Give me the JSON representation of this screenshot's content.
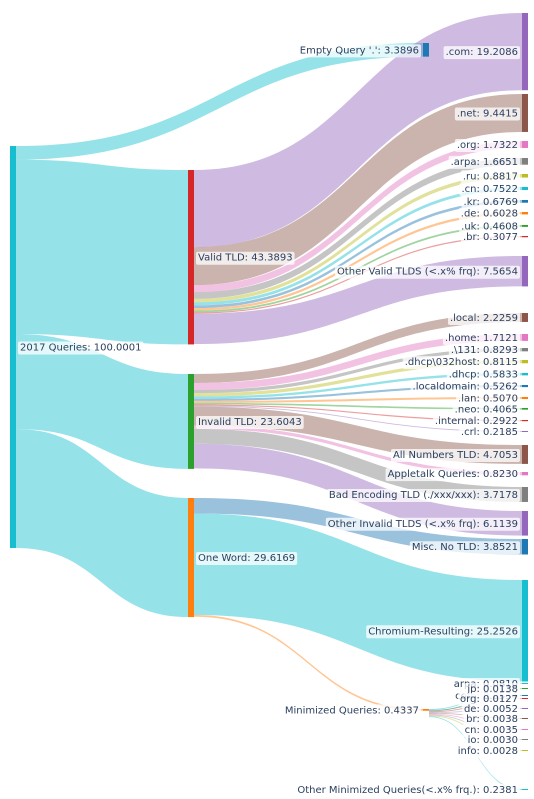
{
  "chart_data": {
    "type": "sankey",
    "nodes": [
      {
        "id": "root",
        "label": "2017 Queries: 100.0001",
        "color": "#17becf"
      },
      {
        "id": "empty",
        "label": "Empty Query '.': 3.3896",
        "color": "#1f77b4"
      },
      {
        "id": "valid",
        "label": "Valid TLD: 43.3893",
        "color": "#d62728"
      },
      {
        "id": "invalid",
        "label": "Invalid TLD: 23.6043",
        "color": "#2ca02c"
      },
      {
        "id": "oneword",
        "label": "One Word: 29.6169",
        "color": "#ff7f0e"
      },
      {
        "id": "com",
        "label": ".com: 19.2086",
        "color": "#9467bd"
      },
      {
        "id": "net",
        "label": ".net: 9.4415",
        "color": "#8c564b"
      },
      {
        "id": "org",
        "label": ".org: 1.7322",
        "color": "#e377c2"
      },
      {
        "id": "arpa",
        "label": ".arpa: 1.6651",
        "color": "#7f7f7f"
      },
      {
        "id": "ru",
        "label": ".ru: 0.8817",
        "color": "#bcbd22"
      },
      {
        "id": "cn",
        "label": ".cn: 0.7522",
        "color": "#17becf"
      },
      {
        "id": "kr",
        "label": ".kr: 0.6769",
        "color": "#1f77b4"
      },
      {
        "id": "de",
        "label": ".de: 0.6028",
        "color": "#ff7f0e"
      },
      {
        "id": "uk",
        "label": ".uk: 0.4608",
        "color": "#2ca02c"
      },
      {
        "id": "br",
        "label": ".br: 0.3077",
        "color": "#d62728"
      },
      {
        "id": "othervalid",
        "label": "Other Valid TLDS (<.x% frq): 7.5654",
        "color": "#9467bd"
      },
      {
        "id": "local",
        "label": ".local: 2.2259",
        "color": "#8c564b"
      },
      {
        "id": "home",
        "label": ".home: 1.7121",
        "color": "#e377c2"
      },
      {
        "id": "x131",
        "label": ".\\131: 0.8293",
        "color": "#7f7f7f"
      },
      {
        "id": "dhcp032",
        "label": ".dhcp\\032host: 0.8115",
        "color": "#bcbd22"
      },
      {
        "id": "dhcp",
        "label": ".dhcp: 0.5833",
        "color": "#17becf"
      },
      {
        "id": "localdomain",
        "label": ".localdomain: 0.5262",
        "color": "#1f77b4"
      },
      {
        "id": "lan",
        "label": ".lan: 0.5070",
        "color": "#ff7f0e"
      },
      {
        "id": "neo",
        "label": ".neo: 0.4065",
        "color": "#2ca02c"
      },
      {
        "id": "internal",
        "label": ".internal: 0.2922",
        "color": "#d62728"
      },
      {
        "id": "crl",
        "label": ".crl: 0.2185",
        "color": "#9467bd"
      },
      {
        "id": "allnum",
        "label": "All Numbers TLD: 4.7053",
        "color": "#8c564b"
      },
      {
        "id": "appletalk",
        "label": "Appletalk Queries: 0.8230",
        "color": "#e377c2"
      },
      {
        "id": "badenc",
        "label": "Bad Encoding TLD (./xxx/xxx): 3.7178",
        "color": "#7f7f7f"
      },
      {
        "id": "otherinvalid",
        "label": "Other Invalid TLDS (<.x% frq): 6.1139",
        "color": "#9467bd"
      },
      {
        "id": "miscno",
        "label": "Misc. No TLD: 3.8521",
        "color": "#1f77b4"
      },
      {
        "id": "chromium",
        "label": "Chromium-Resulting: 25.2526",
        "color": "#17becf"
      },
      {
        "id": "minimized",
        "label": "Minimized Queries: 0.4337",
        "color": "#ff7f0e"
      },
      {
        "id": "m_arpa",
        "label": "arpa: 0.0810",
        "color": "#17becf"
      },
      {
        "id": "m_com",
        "label": "com: 0.0534",
        "color": "#1f77b4"
      },
      {
        "id": "m_jp",
        "label": "jp: 0.0138",
        "color": "#2ca02c"
      },
      {
        "id": "m_org",
        "label": "org: 0.0127",
        "color": "#d62728"
      },
      {
        "id": "m_de",
        "label": "de: 0.0052",
        "color": "#9467bd"
      },
      {
        "id": "m_br",
        "label": "br: 0.0038",
        "color": "#8c564b"
      },
      {
        "id": "m_cn",
        "label": "cn: 0.0035",
        "color": "#e377c2"
      },
      {
        "id": "m_io",
        "label": "io: 0.0030",
        "color": "#7f7f7f"
      },
      {
        "id": "m_info",
        "label": "info: 0.0028",
        "color": "#bcbd22"
      },
      {
        "id": "m_other",
        "label": "Other Minimized Queries(<.x% frq.): 0.2381",
        "color": "#17becf"
      }
    ],
    "links": [
      {
        "source": "root",
        "target": "empty",
        "value": 3.3896,
        "color": "#17becf"
      },
      {
        "source": "root",
        "target": "valid",
        "value": 43.3893,
        "color": "#17becf"
      },
      {
        "source": "root",
        "target": "invalid",
        "value": 23.6043,
        "color": "#17becf"
      },
      {
        "source": "root",
        "target": "oneword",
        "value": 29.6169,
        "color": "#17becf"
      },
      {
        "source": "valid",
        "target": "com",
        "value": 19.2086,
        "color": "#9467bd"
      },
      {
        "source": "valid",
        "target": "net",
        "value": 9.4415,
        "color": "#8c564b"
      },
      {
        "source": "valid",
        "target": "org",
        "value": 1.7322,
        "color": "#e377c2"
      },
      {
        "source": "valid",
        "target": "arpa",
        "value": 1.6651,
        "color": "#7f7f7f"
      },
      {
        "source": "valid",
        "target": "ru",
        "value": 0.8817,
        "color": "#bcbd22"
      },
      {
        "source": "valid",
        "target": "cn",
        "value": 0.7522,
        "color": "#17becf"
      },
      {
        "source": "valid",
        "target": "kr",
        "value": 0.6769,
        "color": "#1f77b4"
      },
      {
        "source": "valid",
        "target": "de",
        "value": 0.6028,
        "color": "#ff7f0e"
      },
      {
        "source": "valid",
        "target": "uk",
        "value": 0.4608,
        "color": "#2ca02c"
      },
      {
        "source": "valid",
        "target": "br",
        "value": 0.3077,
        "color": "#d62728"
      },
      {
        "source": "valid",
        "target": "othervalid",
        "value": 7.5654,
        "color": "#9467bd"
      },
      {
        "source": "invalid",
        "target": "local",
        "value": 2.2259,
        "color": "#8c564b"
      },
      {
        "source": "invalid",
        "target": "home",
        "value": 1.7121,
        "color": "#e377c2"
      },
      {
        "source": "invalid",
        "target": "x131",
        "value": 0.8293,
        "color": "#7f7f7f"
      },
      {
        "source": "invalid",
        "target": "dhcp032",
        "value": 0.8115,
        "color": "#bcbd22"
      },
      {
        "source": "invalid",
        "target": "dhcp",
        "value": 0.5833,
        "color": "#17becf"
      },
      {
        "source": "invalid",
        "target": "localdomain",
        "value": 0.5262,
        "color": "#1f77b4"
      },
      {
        "source": "invalid",
        "target": "lan",
        "value": 0.507,
        "color": "#ff7f0e"
      },
      {
        "source": "invalid",
        "target": "neo",
        "value": 0.4065,
        "color": "#2ca02c"
      },
      {
        "source": "invalid",
        "target": "internal",
        "value": 0.2922,
        "color": "#d62728"
      },
      {
        "source": "invalid",
        "target": "crl",
        "value": 0.2185,
        "color": "#9467bd"
      },
      {
        "source": "invalid",
        "target": "allnum",
        "value": 4.7053,
        "color": "#8c564b"
      },
      {
        "source": "invalid",
        "target": "appletalk",
        "value": 0.823,
        "color": "#e377c2"
      },
      {
        "source": "invalid",
        "target": "badenc",
        "value": 3.7178,
        "color": "#7f7f7f"
      },
      {
        "source": "invalid",
        "target": "otherinvalid",
        "value": 6.1139,
        "color": "#9467bd"
      },
      {
        "source": "oneword",
        "target": "miscno",
        "value": 3.8521,
        "color": "#1f77b4"
      },
      {
        "source": "oneword",
        "target": "chromium",
        "value": 25.2526,
        "color": "#17becf"
      },
      {
        "source": "oneword",
        "target": "minimized",
        "value": 0.4337,
        "color": "#ff7f0e"
      },
      {
        "source": "minimized",
        "target": "m_arpa",
        "value": 0.081,
        "color": "#17becf"
      },
      {
        "source": "minimized",
        "target": "m_com",
        "value": 0.0534,
        "color": "#1f77b4"
      },
      {
        "source": "minimized",
        "target": "m_jp",
        "value": 0.0138,
        "color": "#2ca02c"
      },
      {
        "source": "minimized",
        "target": "m_org",
        "value": 0.0127,
        "color": "#d62728"
      },
      {
        "source": "minimized",
        "target": "m_de",
        "value": 0.0052,
        "color": "#9467bd"
      },
      {
        "source": "minimized",
        "target": "m_br",
        "value": 0.0038,
        "color": "#8c564b"
      },
      {
        "source": "minimized",
        "target": "m_cn",
        "value": 0.0035,
        "color": "#e377c2"
      },
      {
        "source": "minimized",
        "target": "m_io",
        "value": 0.003,
        "color": "#7f7f7f"
      },
      {
        "source": "minimized",
        "target": "m_info",
        "value": 0.0028,
        "color": "#bcbd22"
      },
      {
        "source": "minimized",
        "target": "m_other",
        "value": 0.2381,
        "color": "#17becf"
      }
    ]
  }
}
